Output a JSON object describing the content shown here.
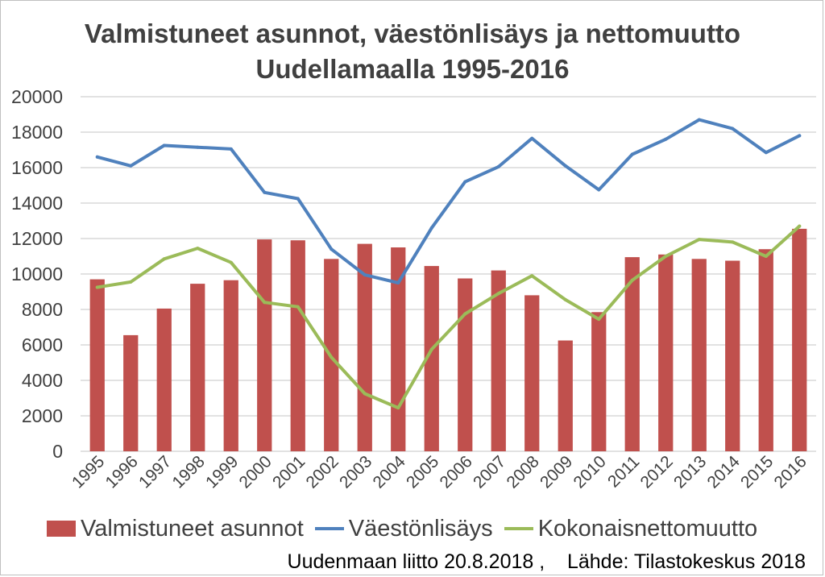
{
  "colors": {
    "bars": "#C0504D",
    "vaestonlisays": "#4F81BD",
    "nettomuutto": "#9BBB59",
    "grid": "#d9d9d9",
    "text": "#404040"
  },
  "chart_data": {
    "type": "bar",
    "title_line1": "Valmistuneet asunnot, väestönlisäys ja nettomuutto",
    "title_line2": "Uudellamaalla 1995-2016",
    "xlabel": "",
    "ylabel": "",
    "ylim": [
      0,
      20000
    ],
    "yticks": [
      "0",
      "2000",
      "4000",
      "6000",
      "8000",
      "10000",
      "12000",
      "14000",
      "16000",
      "18000",
      "20000"
    ],
    "grid": true,
    "legend_position": "bottom",
    "categories": [
      "1995",
      "1996",
      "1997",
      "1998",
      "1999",
      "2000",
      "2001",
      "2002",
      "2003",
      "2004",
      "2005",
      "2006",
      "2007",
      "2008",
      "2009",
      "2010",
      "2011",
      "2012",
      "2013",
      "2014",
      "2015",
      "2016"
    ],
    "series": [
      {
        "name": "Valmistuneet asunnot",
        "type": "bar",
        "values": [
          9700,
          6550,
          8050,
          9450,
          9650,
          11950,
          11900,
          10850,
          11700,
          11500,
          10450,
          9750,
          10200,
          8800,
          6250,
          7850,
          10950,
          11100,
          10850,
          10750,
          11400,
          12550
        ]
      },
      {
        "name": "Väestönlisäys",
        "type": "line",
        "values": [
          16600,
          16100,
          17250,
          17150,
          17050,
          14600,
          14250,
          11400,
          9950,
          9500,
          12600,
          15200,
          16050,
          17650,
          16100,
          14750,
          16750,
          17600,
          18700,
          18200,
          16850,
          17800
        ]
      },
      {
        "name": "Kokonaisnettomuutto",
        "type": "line",
        "values": [
          9250,
          9550,
          10850,
          11450,
          10650,
          8400,
          8150,
          5300,
          3250,
          2450,
          5750,
          7750,
          8900,
          9900,
          8550,
          7450,
          9650,
          11000,
          11950,
          11800,
          11000,
          12700
        ]
      }
    ]
  },
  "legend": {
    "bars_label": "Valmistuneet asunnot",
    "line1_label": "Väestönlisäys",
    "line2_label": "Kokonaisnettomuutto"
  },
  "footer": {
    "source": "Uudenmaan liitto 20.8.2018 ,    Lähde: Tilastokeskus 2018"
  }
}
